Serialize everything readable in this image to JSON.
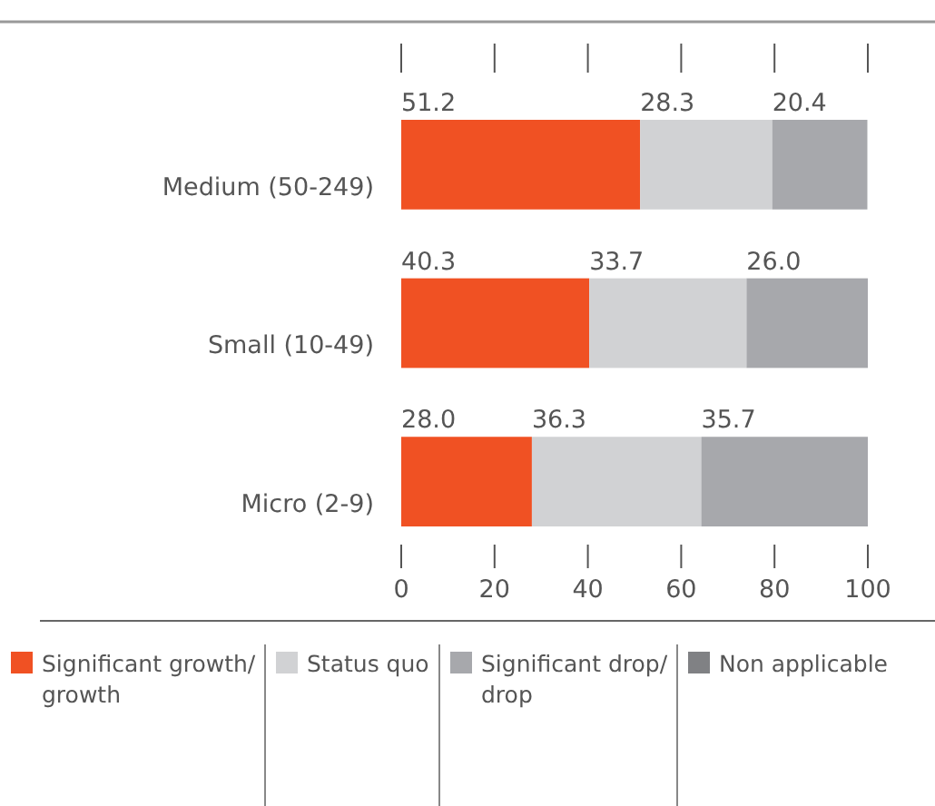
{
  "chart_data": {
    "type": "bar",
    "orientation": "horizontal",
    "stacked": true,
    "categories": [
      "Medium (50-249)",
      "Small (10-49)",
      "Micro (2-9)"
    ],
    "series": [
      {
        "name": "Significant growth/ growth",
        "color": "#f05123",
        "values": [
          51.2,
          40.3,
          28.0
        ],
        "value_labels": [
          "51.2",
          "40.3",
          "28.0"
        ]
      },
      {
        "name": "Status quo",
        "color": "#d1d2d4",
        "values": [
          28.3,
          33.7,
          36.3
        ],
        "value_labels": [
          "28.3",
          "33.7",
          "36.3"
        ]
      },
      {
        "name": "Significant drop/ drop",
        "color": "#a7a8ac",
        "values": [
          20.4,
          26.0,
          35.7
        ],
        "value_labels": [
          "20.4",
          "26.0",
          "35.7"
        ]
      },
      {
        "name": "Non applicable",
        "color": "#808184",
        "values": [
          null,
          null,
          null
        ]
      }
    ],
    "xlim": [
      0,
      100
    ],
    "xticks": [
      0,
      20,
      40,
      60,
      80,
      100
    ],
    "tick_labels": "x",
    "legend": "bottom"
  }
}
